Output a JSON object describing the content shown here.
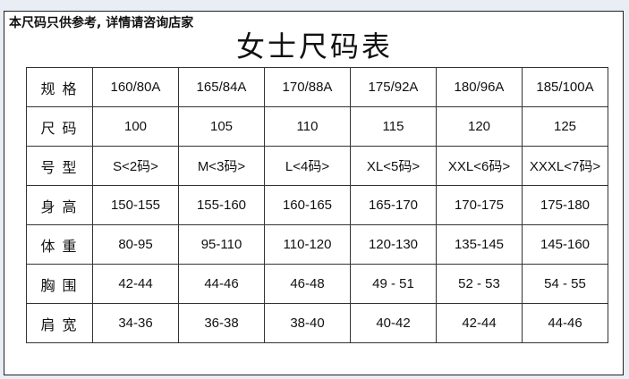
{
  "note": "本尺码只供参考, 详情请咨询店家",
  "title": "女士尺码表",
  "rows": [
    {
      "label": "规格",
      "values": [
        "160/80A",
        "165/84A",
        "170/88A",
        "175/92A",
        "180/96A",
        "185/100A"
      ]
    },
    {
      "label": "尺码",
      "values": [
        "100",
        "105",
        "110",
        "115",
        "120",
        "125"
      ]
    },
    {
      "label": "号型",
      "values": [
        "S<2码>",
        "M<3码>",
        "L<4码>",
        "XL<5码>",
        "XXL<6码>",
        "XXXL<7码>"
      ]
    },
    {
      "label": "身高",
      "values": [
        "150-155",
        "155-160",
        "160-165",
        "165-170",
        "170-175",
        "175-180"
      ]
    },
    {
      "label": "体重",
      "values": [
        "80-95",
        "95-110",
        "110-120",
        "120-130",
        "135-145",
        "145-160"
      ]
    },
    {
      "label": "胸围",
      "values": [
        "42-44",
        "44-46",
        "46-48",
        "49 - 51",
        "52 - 53",
        "54 - 55"
      ]
    },
    {
      "label": "肩宽",
      "values": [
        "34-36",
        "36-38",
        "38-40",
        "40-42",
        "42-44",
        "44-46"
      ]
    }
  ]
}
